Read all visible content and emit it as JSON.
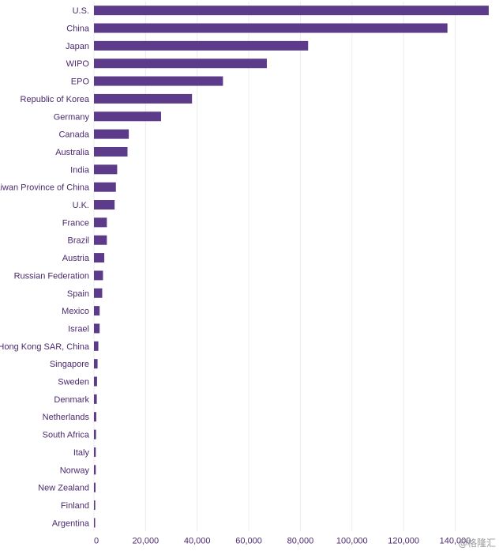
{
  "chart_data": {
    "type": "bar",
    "orientation": "horizontal",
    "categories": [
      "U.S.",
      "China",
      "Japan",
      "WIPO",
      "EPO",
      "Republic of Korea",
      "Germany",
      "Canada",
      "Australia",
      "India",
      "Taiwan Province of China",
      "U.K.",
      "France",
      "Brazil",
      "Austria",
      "Russian Federation",
      "Spain",
      "Mexico",
      "Israel",
      "Hong Kong SAR, China",
      "Singapore",
      "Sweden",
      "Denmark",
      "Netherlands",
      "South Africa",
      "Italy",
      "Norway",
      "New Zealand",
      "Finland",
      "Argentina"
    ],
    "values": [
      153000,
      137000,
      83000,
      67000,
      50000,
      38000,
      26000,
      13500,
      13000,
      9000,
      8500,
      8000,
      5000,
      5000,
      4000,
      3500,
      3200,
      2200,
      2200,
      1700,
      1400,
      1200,
      1100,
      900,
      800,
      700,
      700,
      600,
      500,
      400
    ],
    "xticks": [
      "0",
      "20,000",
      "40,000",
      "60,000",
      "80,000",
      "100,000",
      "120,000",
      "140,000"
    ],
    "xlim": [
      0,
      153000
    ],
    "grid": true,
    "bar_color": "#5c3c8a",
    "label_color": "#4a2a6e"
  },
  "watermark": "@格隆汇"
}
